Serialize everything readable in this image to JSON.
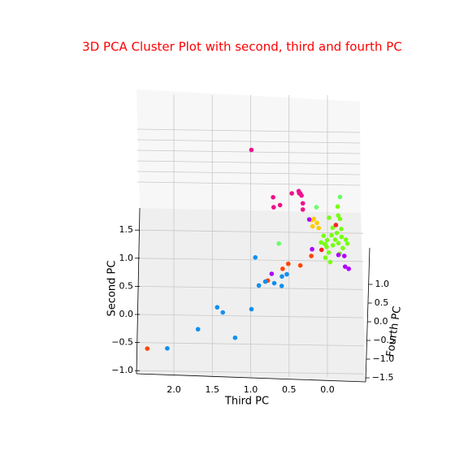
{
  "chart_data": {
    "type": "scatter3d",
    "title": "3D PCA Cluster Plot with second, third and fourth PC",
    "xlabel": "Third PC",
    "ylabel": "Second PC",
    "zlabel": "Fourth PC",
    "xlim": [
      -0.44,
      2.47
    ],
    "ylim": [
      -1.0,
      1.8
    ],
    "zlim": [
      -1.5,
      1.0
    ],
    "xticks": [
      {
        "value": 0,
        "label": "0.0"
      },
      0.5,
      {
        "value": 1,
        "label": "1.0"
      },
      1.5,
      {
        "value": 2,
        "label": "2.0"
      }
    ],
    "yticks": [
      {
        "value": -1,
        "label": "−1.0"
      },
      {
        "value": -0.5,
        "label": "−0.5"
      },
      {
        "value": 0,
        "label": "0.0"
      },
      0.5,
      {
        "value": 1,
        "label": "1.0"
      },
      1.5
    ],
    "zticks": [
      {
        "value": -1.5,
        "label": "−1.5"
      },
      {
        "value": -1,
        "label": "−1.0"
      },
      {
        "value": -0.5,
        "label": "−0.5"
      },
      {
        "value": 0,
        "label": "0.0"
      },
      0.5,
      {
        "value": 1,
        "label": "1.0"
      }
    ],
    "grid": true,
    "series": [
      {
        "color": "#f0108c",
        "x": [
          1.0,
          0.72,
          0.71,
          0.63,
          0.48,
          0.39,
          0.38,
          0.37,
          0.35,
          0.33,
          0.33
        ],
        "y": [
          2.9,
          2.05,
          1.88,
          1.91,
          2.11,
          2.15,
          2.12,
          2.11,
          2.08,
          1.95,
          1.84
        ],
        "z": [
          0.3,
          0.4,
          0.3,
          0.4,
          0.5,
          0.5,
          0.4,
          0.5,
          0.4,
          0.3,
          0.3
        ]
      },
      {
        "color": "#ffcc00",
        "x": [
          0.21,
          0.18,
          0.2,
          0.14,
          0.12
        ],
        "y": [
          1.66,
          1.69,
          1.55,
          1.62,
          1.52
        ],
        "z": [
          0.2,
          0.1,
          0.2,
          0.1,
          0.2
        ]
      },
      {
        "color": "#66ff66",
        "x": [
          0.63,
          0.15,
          -0.16
        ],
        "y": [
          1.27,
          1.89,
          2.08
        ],
        "z": [
          -0.1,
          0.2,
          0.1
        ]
      },
      {
        "color": "#77ff11",
        "x": [
          -0.13,
          -0.14,
          -0.16,
          -0.02,
          -0.07,
          -0.18,
          -0.05,
          0.0,
          -0.1,
          -0.18,
          -0.24,
          0.03,
          -0.07,
          -0.14,
          -0.2,
          -0.02,
          -0.16,
          0.03,
          -0.04,
          0.05,
          -0.12,
          -0.26,
          0.08,
          0.01
        ],
        "y": [
          1.91,
          1.76,
          1.69,
          1.72,
          1.55,
          1.52,
          1.4,
          1.33,
          1.33,
          1.37,
          1.33,
          1.26,
          1.23,
          1.26,
          1.18,
          1.11,
          1.08,
          1.0,
          0.94,
          1.4,
          1.44,
          1.26,
          1.29,
          1.2
        ],
        "z": [
          0.1,
          0.0,
          0.1,
          0.0,
          -0.1,
          0.0,
          0.1,
          -0.1,
          0.0,
          0.1,
          0.0,
          -0.1,
          0.0,
          0.1,
          0.0,
          -0.1,
          0.0,
          0.1,
          -0.1,
          0.0,
          0.1,
          0.0,
          -0.1,
          0.0
        ]
      },
      {
        "color": "#ff2020",
        "x": [
          -0.11,
          0.08
        ],
        "y": [
          1.59,
          1.14
        ],
        "z": [
          0.0,
          0.1
        ]
      },
      {
        "color": "#ff4400",
        "x": [
          2.34,
          0.58,
          0.51,
          0.35,
          0.21,
          0.77
        ],
        "y": [
          -0.59,
          0.82,
          0.9,
          0.88,
          1.04,
          0.62
        ],
        "z": [
          -0.2,
          -0.1,
          0.0,
          -0.1,
          0.0,
          -0.2
        ]
      },
      {
        "color": "#b000ff",
        "x": [
          0.24,
          0.72,
          0.2,
          -0.14,
          -0.23,
          -0.28,
          -0.22
        ],
        "y": [
          1.68,
          0.74,
          1.16,
          1.05,
          0.85,
          0.82,
          1.04
        ],
        "z": [
          0.1,
          -0.2,
          0.0,
          0.1,
          0.0,
          -0.1,
          0.0
        ]
      },
      {
        "color": "#1090f0",
        "x": [
          0.93,
          0.88,
          0.8,
          0.68,
          0.58,
          0.58,
          0.52,
          1.42,
          1.35,
          0.98,
          1.67,
          1.19,
          2.07
        ],
        "y": [
          1.04,
          0.55,
          0.61,
          0.59,
          0.55,
          0.71,
          0.74,
          0.17,
          0.07,
          0.12,
          -0.22,
          -0.38,
          -0.56
        ],
        "z": [
          -0.3,
          -0.4,
          -0.3,
          -0.4,
          -0.5,
          -0.4,
          -0.3,
          -0.5,
          -0.4,
          -0.3,
          -0.5,
          -0.4,
          -0.5
        ]
      }
    ]
  }
}
